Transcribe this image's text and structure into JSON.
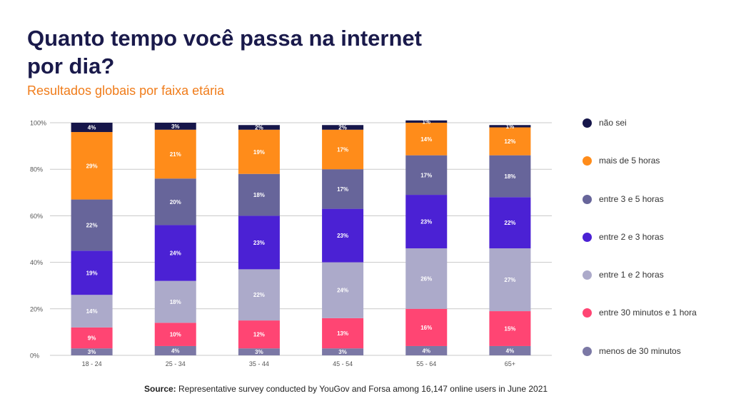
{
  "title": "Quanto tempo você passa na internet por dia?",
  "subtitle": "Resultados globais por faixa etária",
  "source": {
    "label": "Source:",
    "text": "Representative survey conducted by YouGov and Forsa among 16,147 online users in June 2021"
  },
  "chart_data": {
    "type": "bar",
    "stacked": true,
    "categories": [
      "18 - 24",
      "25 - 34",
      "35 - 44",
      "45 - 54",
      "55 - 64",
      "65+"
    ],
    "ylim": [
      0,
      100
    ],
    "yticks": [
      "0%",
      "20%",
      "40%",
      "60%",
      "80%",
      "100%"
    ],
    "grid": true,
    "legend_position": "right",
    "series": [
      {
        "name": "menos de 30 minutos",
        "color": "#7b78a5",
        "values": [
          3,
          4,
          3,
          3,
          4,
          4
        ],
        "labels": [
          "3%",
          "4%",
          "3%",
          "3%",
          "4%",
          "4%"
        ]
      },
      {
        "name": "entre 30 minutos e 1 hora",
        "color": "#ff4573",
        "values": [
          9,
          10,
          12,
          13,
          16,
          15
        ],
        "labels": [
          "9%",
          "10%",
          "12%",
          "13%",
          "16%",
          "15%"
        ]
      },
      {
        "name": "entre 1 e 2 horas",
        "color": "#acaaca",
        "values": [
          14,
          18,
          22,
          24,
          26,
          27
        ],
        "labels": [
          "14%",
          "18%",
          "22%",
          "24%",
          "26%",
          "27%"
        ]
      },
      {
        "name": "entre 2 e 3 horas",
        "color": "#4b21d4",
        "values": [
          19,
          24,
          23,
          23,
          23,
          22
        ],
        "labels": [
          "19%",
          "24%",
          "23%",
          "23%",
          "23%",
          "22%"
        ]
      },
      {
        "name": "entre 3 e 5 horas",
        "color": "#67659a",
        "values": [
          22,
          20,
          18,
          17,
          17,
          18
        ],
        "labels": [
          "22%",
          "20%",
          "18%",
          "17%",
          "17%",
          "18%"
        ]
      },
      {
        "name": "mais de 5 horas",
        "color": "#ff8c1a",
        "values": [
          29,
          21,
          19,
          17,
          14,
          12
        ],
        "labels": [
          "29%",
          "21%",
          "19%",
          "17%",
          "14%",
          "12%"
        ]
      },
      {
        "name": "não sei",
        "color": "#16164a",
        "values": [
          4,
          3,
          2,
          2,
          1,
          1
        ],
        "labels": [
          "4%",
          "3%",
          "2%",
          "2%",
          "1%",
          "1%"
        ]
      }
    ]
  }
}
